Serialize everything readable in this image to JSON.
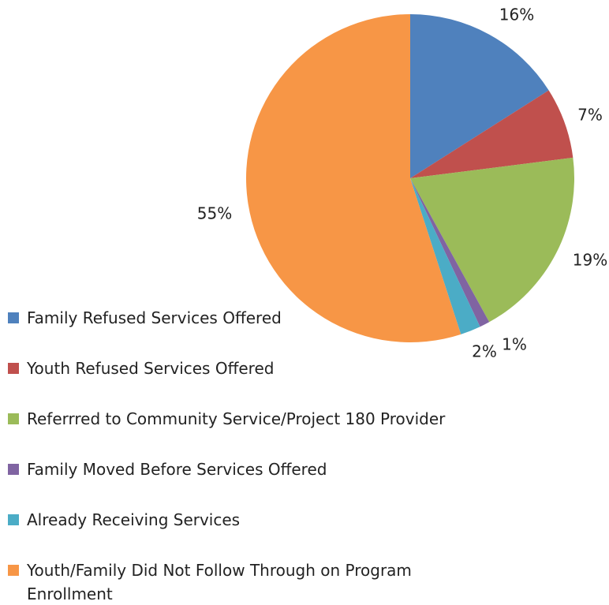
{
  "chart_data": {
    "type": "pie",
    "categories": [
      "Family Refused Services Offered",
      "Youth Refused Services Offered",
      "Referrred to Community Service/Project 180 Provider",
      "Family Moved Before Services Offered",
      "Already Receiving Services",
      "Youth/Family Did Not Follow Through on Program Enrollment"
    ],
    "values": [
      16,
      7,
      19,
      1,
      2,
      55
    ],
    "value_labels": [
      "16%",
      "7%",
      "19%",
      "1%",
      "2%",
      "55%"
    ],
    "colors": [
      "#4f81bd",
      "#c0504d",
      "#9bbb59",
      "#8064a2",
      "#4bacc6",
      "#f79646"
    ],
    "legend": "bottom-left"
  }
}
